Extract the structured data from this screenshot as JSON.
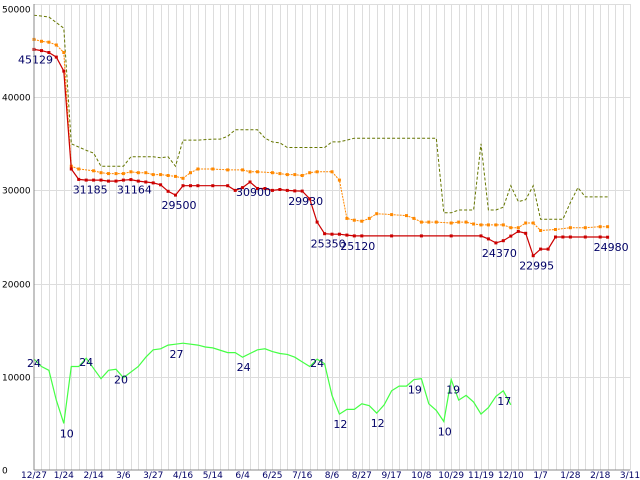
{
  "chart_data": {
    "type": "line",
    "grid": true,
    "ylim": [
      0,
      50000
    ],
    "y_ticks": [
      0,
      10000,
      20000,
      30000,
      40000,
      50000
    ],
    "y_tick_labels": [
      "0",
      "10000",
      "20000",
      "30000",
      "40000",
      "50000"
    ],
    "x_ticks": [
      {
        "x": 0,
        "label": "12/27"
      },
      {
        "x": 4,
        "label": "1/24"
      },
      {
        "x": 8,
        "label": "2/14"
      },
      {
        "x": 12,
        "label": "3/6"
      },
      {
        "x": 16,
        "label": "3/27"
      },
      {
        "x": 20,
        "label": "4/16"
      },
      {
        "x": 24,
        "label": "5/14"
      },
      {
        "x": 28,
        "label": "6/4"
      },
      {
        "x": 32,
        "label": "6/25"
      },
      {
        "x": 36,
        "label": "7/16"
      },
      {
        "x": 40,
        "label": "8/6"
      },
      {
        "x": 44,
        "label": "8/27"
      },
      {
        "x": 48,
        "label": "9/17"
      },
      {
        "x": 52,
        "label": "10/8"
      },
      {
        "x": 56,
        "label": "10/29"
      },
      {
        "x": 60,
        "label": "11/19"
      },
      {
        "x": 64,
        "label": "12/10"
      },
      {
        "x": 68,
        "label": "1/7"
      },
      {
        "x": 72,
        "label": "1/28"
      },
      {
        "x": 76,
        "label": "2/18"
      },
      {
        "x": 80,
        "label": "3/11"
      }
    ],
    "series": [
      {
        "color": "#667700",
        "dash": "3,2",
        "points": [
          [
            0,
            48800
          ],
          [
            2,
            48600
          ],
          [
            4,
            47400
          ],
          [
            5,
            35000
          ],
          [
            7,
            34300
          ],
          [
            8,
            34000
          ],
          [
            9,
            32600
          ],
          [
            10,
            32600
          ],
          [
            12,
            32600
          ],
          [
            13,
            33600
          ],
          [
            16,
            33600
          ],
          [
            17,
            33500
          ],
          [
            18,
            33600
          ],
          [
            19,
            32600
          ],
          [
            20,
            35400
          ],
          [
            21,
            35400
          ],
          [
            22,
            35400
          ],
          [
            24,
            35500
          ],
          [
            25,
            35500
          ],
          [
            26,
            35800
          ],
          [
            27,
            36500
          ],
          [
            28,
            36500
          ],
          [
            30,
            36500
          ],
          [
            31,
            35600
          ],
          [
            32,
            35200
          ],
          [
            33,
            35100
          ],
          [
            34,
            34600
          ],
          [
            35,
            34600
          ],
          [
            36,
            34600
          ],
          [
            39,
            34600
          ],
          [
            40,
            35200
          ],
          [
            41,
            35200
          ],
          [
            42,
            35400
          ],
          [
            43,
            35600
          ],
          [
            48,
            35600
          ],
          [
            52,
            35600
          ],
          [
            54,
            35600
          ],
          [
            55,
            27600
          ],
          [
            56,
            27600
          ],
          [
            57,
            27900
          ],
          [
            59,
            27900
          ],
          [
            60,
            35000
          ],
          [
            61,
            27900
          ],
          [
            62,
            27900
          ],
          [
            63,
            28200
          ],
          [
            64,
            30500
          ],
          [
            65,
            28800
          ],
          [
            66,
            29000
          ],
          [
            67,
            30500
          ],
          [
            68,
            26900
          ],
          [
            69,
            26900
          ],
          [
            70,
            26900
          ],
          [
            71,
            26900
          ],
          [
            72,
            28700
          ],
          [
            73,
            30300
          ],
          [
            74,
            29300
          ],
          [
            76,
            29300
          ],
          [
            77,
            29300
          ]
        ]
      },
      {
        "color": "#ff8800",
        "dash": "2,1",
        "points": [
          [
            0,
            46200
          ],
          [
            1,
            46000
          ],
          [
            2,
            45900
          ],
          [
            3,
            45600
          ],
          [
            4,
            44800
          ],
          [
            5,
            32600
          ],
          [
            6,
            32300
          ],
          [
            8,
            32100
          ],
          [
            9,
            31900
          ],
          [
            10,
            31800
          ],
          [
            11,
            31800
          ],
          [
            12,
            31800
          ],
          [
            13,
            32000
          ],
          [
            14,
            31900
          ],
          [
            15,
            31900
          ],
          [
            16,
            31700
          ],
          [
            17,
            31700
          ],
          [
            18,
            31600
          ],
          [
            19,
            31500
          ],
          [
            20,
            31300
          ],
          [
            21,
            31900
          ],
          [
            22,
            32300
          ],
          [
            24,
            32300
          ],
          [
            26,
            32200
          ],
          [
            28,
            32200
          ],
          [
            29,
            32000
          ],
          [
            30,
            32000
          ],
          [
            32,
            31900
          ],
          [
            33,
            31800
          ],
          [
            34,
            31700
          ],
          [
            35,
            31700
          ],
          [
            36,
            31600
          ],
          [
            37,
            31900
          ],
          [
            38,
            32000
          ],
          [
            40,
            32000
          ],
          [
            41,
            31100
          ],
          [
            42,
            27000
          ],
          [
            43,
            26800
          ],
          [
            44,
            26700
          ],
          [
            45,
            27000
          ],
          [
            46,
            27500
          ],
          [
            48,
            27400
          ],
          [
            50,
            27300
          ],
          [
            51,
            27000
          ],
          [
            52,
            26600
          ],
          [
            53,
            26600
          ],
          [
            54,
            26600
          ],
          [
            56,
            26500
          ],
          [
            57,
            26600
          ],
          [
            58,
            26600
          ],
          [
            59,
            26400
          ],
          [
            60,
            26300
          ],
          [
            61,
            26300
          ],
          [
            62,
            26300
          ],
          [
            63,
            26300
          ],
          [
            64,
            26000
          ],
          [
            65,
            26000
          ],
          [
            66,
            26500
          ],
          [
            67,
            26500
          ],
          [
            68,
            25700
          ],
          [
            70,
            25800
          ],
          [
            72,
            26000
          ],
          [
            74,
            26000
          ],
          [
            76,
            26100
          ],
          [
            77,
            26100
          ]
        ]
      },
      {
        "color": "#cc0000",
        "dash": "",
        "points": [
          [
            0,
            45129
          ],
          [
            1,
            45000
          ],
          [
            2,
            44800
          ],
          [
            3,
            44300
          ],
          [
            4,
            42800
          ],
          [
            5,
            32300
          ],
          [
            6,
            31185
          ],
          [
            7,
            31100
          ],
          [
            8,
            31100
          ],
          [
            9,
            31100
          ],
          [
            10,
            31000
          ],
          [
            11,
            31000
          ],
          [
            12,
            31100
          ],
          [
            13,
            31164
          ],
          [
            14,
            31000
          ],
          [
            15,
            30900
          ],
          [
            16,
            30800
          ],
          [
            17,
            30600
          ],
          [
            18,
            29900
          ],
          [
            19,
            29500
          ],
          [
            20,
            30500
          ],
          [
            21,
            30500
          ],
          [
            22,
            30500
          ],
          [
            24,
            30500
          ],
          [
            26,
            30500
          ],
          [
            27,
            30000
          ],
          [
            28,
            30300
          ],
          [
            29,
            30900
          ],
          [
            30,
            30200
          ],
          [
            31,
            30200
          ],
          [
            32,
            30000
          ],
          [
            33,
            30100
          ],
          [
            34,
            30000
          ],
          [
            35,
            29950
          ],
          [
            36,
            29930
          ],
          [
            37,
            29100
          ],
          [
            38,
            26600
          ],
          [
            39,
            25350
          ],
          [
            40,
            25300
          ],
          [
            41,
            25300
          ],
          [
            42,
            25200
          ],
          [
            43,
            25120
          ],
          [
            44,
            25120
          ],
          [
            48,
            25120
          ],
          [
            52,
            25120
          ],
          [
            56,
            25120
          ],
          [
            60,
            25120
          ],
          [
            61,
            24800
          ],
          [
            62,
            24370
          ],
          [
            63,
            24600
          ],
          [
            64,
            25100
          ],
          [
            65,
            25600
          ],
          [
            66,
            25400
          ],
          [
            67,
            22995
          ],
          [
            68,
            23700
          ],
          [
            69,
            23700
          ],
          [
            70,
            25000
          ],
          [
            71,
            25000
          ],
          [
            72,
            25000
          ],
          [
            74,
            25000
          ],
          [
            76,
            25000
          ],
          [
            77,
            24980
          ]
        ]
      },
      {
        "color": "#44ff44",
        "dash": "",
        "points": [
          [
            0,
            11900
          ],
          [
            1,
            11100
          ],
          [
            2,
            10700
          ],
          [
            3,
            7500
          ],
          [
            4,
            5000
          ],
          [
            5,
            11100
          ],
          [
            6,
            11100
          ],
          [
            7,
            12000
          ],
          [
            9,
            9800
          ],
          [
            10,
            10700
          ],
          [
            11,
            10800
          ],
          [
            12,
            9900
          ],
          [
            14,
            11100
          ],
          [
            15,
            12100
          ],
          [
            16,
            12900
          ],
          [
            17,
            13000
          ],
          [
            18,
            13400
          ],
          [
            19,
            13500
          ],
          [
            20,
            13600
          ],
          [
            22,
            13400
          ],
          [
            23,
            13200
          ],
          [
            24,
            13100
          ],
          [
            26,
            12600
          ],
          [
            27,
            12600
          ],
          [
            28,
            12100
          ],
          [
            29,
            12500
          ],
          [
            30,
            12900
          ],
          [
            31,
            13000
          ],
          [
            32,
            12700
          ],
          [
            33,
            12500
          ],
          [
            34,
            12400
          ],
          [
            35,
            12100
          ],
          [
            36,
            11600
          ],
          [
            37,
            11100
          ],
          [
            38,
            11900
          ],
          [
            39,
            11400
          ],
          [
            40,
            8000
          ],
          [
            41,
            6000
          ],
          [
            42,
            6500
          ],
          [
            43,
            6500
          ],
          [
            44,
            7100
          ],
          [
            45,
            6900
          ],
          [
            46,
            6100
          ],
          [
            47,
            7000
          ],
          [
            48,
            8500
          ],
          [
            49,
            9000
          ],
          [
            50,
            9000
          ],
          [
            51,
            9700
          ],
          [
            52,
            9800
          ],
          [
            53,
            7100
          ],
          [
            54,
            6400
          ],
          [
            55,
            5200
          ],
          [
            56,
            9700
          ],
          [
            57,
            7500
          ],
          [
            58,
            8000
          ],
          [
            59,
            7300
          ],
          [
            60,
            6000
          ],
          [
            61,
            6700
          ],
          [
            62,
            7900
          ],
          [
            63,
            8500
          ],
          [
            64,
            7000
          ]
        ]
      }
    ],
    "annotations": [
      {
        "text": "45129",
        "x": 0,
        "y": 45129,
        "dx": -16,
        "dy": 14
      },
      {
        "text": "31185",
        "x": 6,
        "y": 31185,
        "dx": -6,
        "dy": 14
      },
      {
        "text": "31164",
        "x": 13,
        "y": 31164,
        "dx": -14,
        "dy": 14
      },
      {
        "text": "29500",
        "x": 19,
        "y": 29500,
        "dx": -14,
        "dy": 14
      },
      {
        "text": "30900",
        "x": 29,
        "y": 30900,
        "dx": -14,
        "dy": 14
      },
      {
        "text": "29930",
        "x": 36,
        "y": 29930,
        "dx": -14,
        "dy": 14
      },
      {
        "text": "25350",
        "x": 39,
        "y": 25350,
        "dx": -14,
        "dy": 14
      },
      {
        "text": "25120",
        "x": 43,
        "y": 25120,
        "dx": -14,
        "dy": 14
      },
      {
        "text": "24370",
        "x": 62,
        "y": 24370,
        "dx": -14,
        "dy": 14
      },
      {
        "text": "22995",
        "x": 67,
        "y": 22995,
        "dx": -14,
        "dy": 14
      },
      {
        "text": "24980",
        "x": 77,
        "y": 24980,
        "dx": -14,
        "dy": 14
      },
      {
        "text": "24",
        "x": 0,
        "y": 11900,
        "dx": -7,
        "dy": 8
      },
      {
        "text": "10",
        "x": 4,
        "y": 5000,
        "dx": -4,
        "dy": 14
      },
      {
        "text": "24",
        "x": 7,
        "y": 12000,
        "dx": -7,
        "dy": 8
      },
      {
        "text": "20",
        "x": 11,
        "y": 10800,
        "dx": -2,
        "dy": 14
      },
      {
        "text": "27",
        "x": 19,
        "y": 13500,
        "dx": -6,
        "dy": 14
      },
      {
        "text": "24",
        "x": 28,
        "y": 12100,
        "dx": -6,
        "dy": 14
      },
      {
        "text": "24",
        "x": 38,
        "y": 11900,
        "dx": -7,
        "dy": 8
      },
      {
        "text": "12",
        "x": 41,
        "y": 6000,
        "dx": -6,
        "dy": 14
      },
      {
        "text": "12",
        "x": 46,
        "y": 6100,
        "dx": -6,
        "dy": 14
      },
      {
        "text": "19",
        "x": 51,
        "y": 9700,
        "dx": -6,
        "dy": 14
      },
      {
        "text": "10",
        "x": 55,
        "y": 5200,
        "dx": -6,
        "dy": 14
      },
      {
        "text": "19",
        "x": 56,
        "y": 9700,
        "dx": -5,
        "dy": 14
      },
      {
        "text": "17",
        "x": 63,
        "y": 8500,
        "dx": -6,
        "dy": 14
      }
    ]
  }
}
